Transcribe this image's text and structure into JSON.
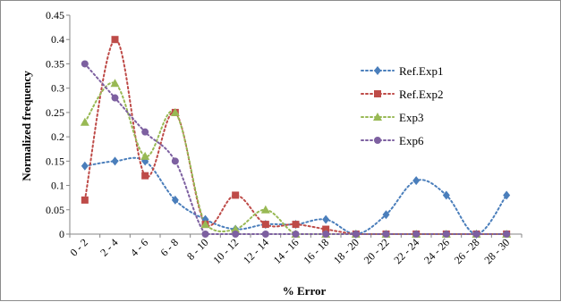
{
  "chart_data": {
    "type": "line",
    "title": "",
    "xlabel": "% Error",
    "ylabel": "Normalized frequency",
    "ylim": [
      0,
      0.45
    ],
    "yticks": [
      "0",
      "0.05",
      "0.1",
      "0.15",
      "0.2",
      "0.25",
      "0.3",
      "0.35",
      "0.4",
      "0.45"
    ],
    "grid": false,
    "legend_position": "right",
    "categories": [
      "0 - 2",
      "2 - 4",
      "4 - 6",
      "6 - 8",
      "8 - 10",
      "10 - 12",
      "12 - 14",
      "14 - 16",
      "16 - 18",
      "18 - 20",
      "20 - 22",
      "22 - 24",
      "24 - 26",
      "26 - 28",
      "28 - 30"
    ],
    "series": [
      {
        "name": "Ref.Exp1",
        "color": "#4a7ebb",
        "marker": "diamond",
        "values": [
          0.14,
          0.15,
          0.15,
          0.07,
          0.03,
          0.01,
          0.02,
          0.02,
          0.03,
          0.0,
          0.04,
          0.11,
          0.08,
          0.0,
          0.08
        ]
      },
      {
        "name": "Ref.Exp2",
        "color": "#be4b48",
        "marker": "square",
        "values": [
          0.07,
          0.4,
          0.12,
          0.25,
          0.02,
          0.08,
          0.02,
          0.02,
          0.01,
          0.0,
          0.0,
          0.0,
          0.0,
          0.0,
          0.0
        ]
      },
      {
        "name": "Exp3",
        "color": "#98b954",
        "marker": "triangle",
        "values": [
          0.23,
          0.31,
          0.16,
          0.25,
          0.02,
          0.01,
          0.05,
          0.0,
          0.0,
          0.0,
          0.0,
          0.0,
          0.0,
          0.0,
          0.0
        ]
      },
      {
        "name": "Exp6",
        "color": "#7d60a0",
        "marker": "circle",
        "values": [
          0.35,
          0.28,
          0.21,
          0.15,
          0.0,
          0.0,
          0.0,
          0.0,
          0.0,
          0.0,
          0.0,
          0.0,
          0.0,
          0.0,
          0.0
        ]
      }
    ]
  }
}
